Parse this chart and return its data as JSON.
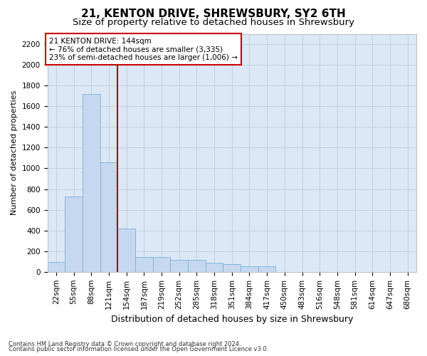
{
  "title": "21, KENTON DRIVE, SHREWSBURY, SY2 6TH",
  "subtitle": "Size of property relative to detached houses in Shrewsbury",
  "xlabel": "Distribution of detached houses by size in Shrewsbury",
  "ylabel": "Number of detached properties",
  "footnote1": "Contains HM Land Registry data © Crown copyright and database right 2024.",
  "footnote2": "Contains public sector information licensed under the Open Government Licence v3.0.",
  "bar_labels": [
    "22sqm",
    "55sqm",
    "88sqm",
    "121sqm",
    "154sqm",
    "187sqm",
    "219sqm",
    "252sqm",
    "285sqm",
    "318sqm",
    "351sqm",
    "384sqm",
    "417sqm",
    "450sqm",
    "483sqm",
    "516sqm",
    "548sqm",
    "581sqm",
    "614sqm",
    "647sqm",
    "680sqm"
  ],
  "bar_values": [
    95,
    730,
    1720,
    1060,
    420,
    145,
    145,
    115,
    115,
    90,
    75,
    55,
    55,
    0,
    0,
    0,
    0,
    0,
    0,
    0,
    0
  ],
  "bar_color": "#c5d8ef",
  "bar_edge_color": "#7bafd4",
  "grid_color": "#c0cfe0",
  "background_color": "#dce8f5",
  "vline_color": "#aa0000",
  "vline_position": 3.5,
  "annotation_text": "21 KENTON DRIVE: 144sqm\n← 76% of detached houses are smaller (3,335)\n23% of semi-detached houses are larger (1,006) →",
  "annotation_box_facecolor": "#ffffff",
  "annotation_box_edgecolor": "#cc0000",
  "ylim_max": 2300,
  "yticks": [
    0,
    200,
    400,
    600,
    800,
    1000,
    1200,
    1400,
    1600,
    1800,
    2000,
    2200
  ],
  "title_fontsize": 11,
  "subtitle_fontsize": 9.5,
  "xlabel_fontsize": 9,
  "ylabel_fontsize": 8,
  "tick_fontsize": 7.5,
  "annotation_fontsize": 7.5,
  "footnote_fontsize": 6
}
